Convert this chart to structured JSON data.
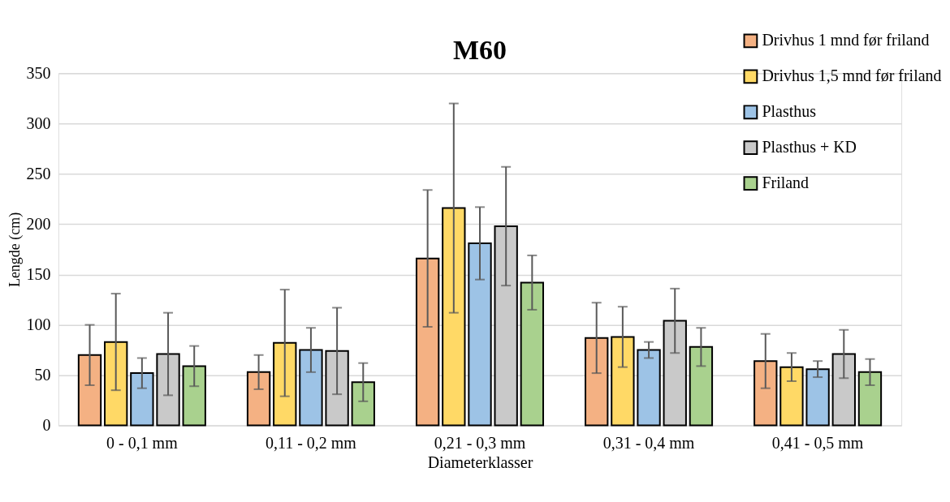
{
  "chart_data": {
    "type": "bar",
    "title": "M60",
    "xlabel": "Diameterklasser",
    "ylabel": "Lengde (cm)",
    "categories": [
      "0 - 0,1 mm",
      "0,11 - 0,2 mm",
      "0,21 - 0,3 mm",
      "0,31 - 0,4 mm",
      "0,41 - 0,5 mm"
    ],
    "series": [
      {
        "name": "Drivhus 1 mnd før friland",
        "color": "#f4b183",
        "values": [
          70,
          53,
          166,
          87,
          64
        ],
        "errors": [
          30,
          17,
          68,
          35,
          27
        ]
      },
      {
        "name": "Drivhus 1,5 mnd før friland",
        "color": "#ffd966",
        "values": [
          83,
          82,
          216,
          88,
          58
        ],
        "errors": [
          48,
          53,
          104,
          30,
          14
        ]
      },
      {
        "name": "Plasthus",
        "color": "#9dc3e6",
        "values": [
          52,
          75,
          181,
          75,
          56
        ],
        "errors": [
          15,
          22,
          36,
          8,
          8
        ]
      },
      {
        "name": "Plasthus + KD",
        "color": "#c9c9c9",
        "values": [
          71,
          74,
          198,
          104,
          71
        ],
        "errors": [
          41,
          43,
          59,
          32,
          24
        ]
      },
      {
        "name": "Friland",
        "color": "#a9d18e",
        "values": [
          59,
          43,
          142,
          78,
          53
        ],
        "errors": [
          20,
          19,
          27,
          19,
          13
        ]
      }
    ],
    "ylim": [
      0,
      350
    ],
    "yticks": [
      0,
      50,
      100,
      150,
      200,
      250,
      300,
      350
    ],
    "grid": "y",
    "legend": "top right"
  }
}
